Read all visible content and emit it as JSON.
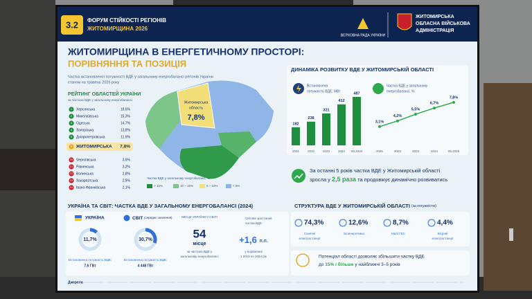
{
  "header": {
    "badge": "3.2",
    "forum": [
      "ФОРУМ СТІЙКОСТІ РЕГІОНІВ",
      "ЖИТОМИРЩИНА 2026"
    ],
    "parliament": "ВЕРХОВНА РАДА УКРАЇНИ",
    "administration": [
      "ЖИТОМИРСЬКА",
      "ОБЛАСНА ВІЙСЬКОВА",
      "АДМІНІСТРАЦІЯ"
    ]
  },
  "title": "ЖИТОМИРЩИНА В ЕНЕРГЕТИЧНОМУ ПРОСТОРІ:",
  "subtitle": "ПОРІВНЯННЯ ТА ПОЗИЦІЯ",
  "map": {
    "caption": [
      "Частка встановленої потужності ВДЕ у загальному енергобалансі регіонів України",
      "станом на травень 2026 року"
    ],
    "rating_title": "РЕЙТИНГ ОБЛАСТЕЙ УКРАЇНИ",
    "rating_subtitle": "за часткою ВДЕ у загальному енергобалансі",
    "top": [
      [
        "1",
        "Херсонська",
        "18,6%"
      ],
      [
        "2",
        "Миколаївська",
        "15,3%"
      ],
      [
        "3",
        "Одеська",
        "14,7%"
      ],
      [
        "4",
        "Запорізька",
        "13,8%"
      ],
      [
        "5",
        "Дніпропетровська",
        "11,9%"
      ]
    ],
    "own": [
      "9",
      "ЖИТОМИРСЬКА",
      "7,8%"
    ],
    "bottom": [
      [
        "20",
        "Чернігівська",
        "3,6%"
      ],
      [
        "21",
        "Рівненська",
        "3,2%"
      ],
      [
        "22",
        "Волинська",
        "2,8%"
      ],
      [
        "23",
        "Закарпатська",
        "2,5%"
      ],
      [
        "24",
        "Івано-Франківська",
        "2,1%"
      ]
    ],
    "region_label": [
      "Житомирська",
      "область"
    ],
    "region_value": "7,8%",
    "legend_title": "Частка ВДЕ у загальному енергобалансі, %",
    "legend": [
      "> 15%",
      "10 – 15%",
      "5 – 10%",
      "< 5%"
    ]
  },
  "dynamics_title": "ДИНАМІКА РОЗВИТКУ ВДЕ У ЖИТОМИРСЬКІЙ ОБЛАСТІ",
  "chart_data": [
    {
      "type": "bar",
      "label": [
        "Встановлена",
        "потужність ВДЕ, МВт"
      ],
      "categories": [
        "2021",
        "2022",
        "2023",
        "2024",
        "05.2026"
      ],
      "values": [
        182,
        238,
        321,
        412,
        487
      ],
      "color": "#1f8f3f"
    },
    {
      "type": "line",
      "label": [
        "Частка ВДЕ у загальному",
        "енергобалансі, %"
      ],
      "categories": [
        "2021",
        "2022",
        "2023",
        "2024",
        "05.2026"
      ],
      "values": [
        3.1,
        4.2,
        5.5,
        6.7,
        7.8
      ],
      "value_labels": [
        "3,1%",
        "4,2%",
        "5,5%",
        "6,7%",
        "7,8%"
      ],
      "color": "#2ea84a"
    }
  ],
  "dynamics_note": [
    "За останні 5 років частка ВДЕ у Житомирській області",
    "зросла у ",
    "2,5 раза",
    " та продовжує динамічно розвиватись"
  ],
  "world": {
    "title": "УКРАЇНА ТА СВІТ: ЧАСТКА ВДЕ У ЗАГАЛЬНОМУ ЕНЕРГОБАЛАНСІ (2024)",
    "ukraine": {
      "name": "УКРАЇНА",
      "value": 11.7,
      "value_label": "11,7%",
      "note": [
        "Встановлена потужність ВДЕ:",
        "7,6 ГВт"
      ]
    },
    "world": {
      "name": "СВІТ",
      "qualifier": "(середнє значення)",
      "value": 30.7,
      "value_label": "30,7%",
      "note": [
        "Встановлена потужність ВДЕ:",
        "4 448 ГВт"
      ]
    },
    "rank": {
      "title": "МІСЦЕ УКРАЇНИ У СВІТІ",
      "value": "54",
      "unit": "місце",
      "note": [
        "за часткою ВДЕ у",
        "загальному енергобалансі"
      ]
    },
    "growth": {
      "title": [
        "Світове зростання",
        "частки ВДЕ"
      ],
      "value": "+1,6",
      "unit": "п.п.",
      "note": [
        "у порівнянні",
        "з 2019 по 2024 рік"
      ]
    }
  },
  "structure": {
    "title": "СТРУКТУРА ВДЕ У ЖИТОМИРСЬКІЙ ОБЛАСТІ",
    "qualifier": "(за потужністю)",
    "items": [
      {
        "value": "74,3%",
        "label": [
          "Сонячні",
          "електростанції"
        ]
      },
      {
        "value": "12,6%",
        "label": [
          "Біоенергетика"
        ]
      },
      {
        "value": "8,7%",
        "label": [
          "Малі ГЕС"
        ]
      },
      {
        "value": "4,4%",
        "label": [
          "Вітрові",
          "електростанції"
        ]
      }
    ]
  },
  "potential": [
    "Потенціал області дозволяє збільшити частку ВДЕ",
    "до ",
    "15% і більше",
    " у найближчі 3–5 років"
  ],
  "sources": "Джерела"
}
